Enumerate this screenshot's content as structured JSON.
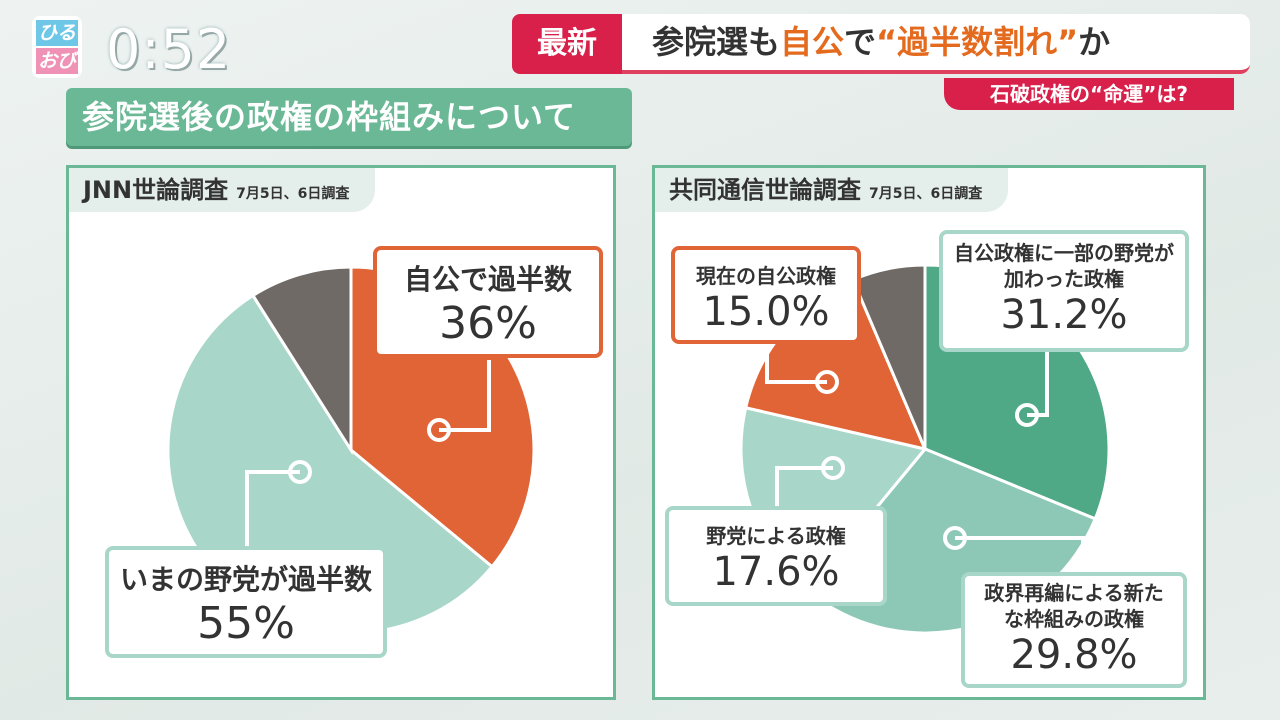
{
  "logo": {
    "line1": "ひる",
    "line2": "おび"
  },
  "clock": "0:52",
  "news": {
    "tag": "最新",
    "headline_pre": "参院選も",
    "headline_hl1": "自公",
    "headline_mid": "で",
    "headline_hl2": "“過半数割れ”",
    "headline_post": "か",
    "sub": "石破政権の“命運”は?"
  },
  "banner": "参院選後の政権の枠組みについて",
  "colors": {
    "orange": "#e06436",
    "light_teal": "#a8d6c8",
    "teal": "#4fa886",
    "mid_teal": "#8dc8b6",
    "gray": "#6f6a66",
    "frame": "#6bb896"
  },
  "chart_data": [
    {
      "type": "pie",
      "title": "JNN世論調査",
      "subtitle": "7月5日、6日調査",
      "slices": [
        {
          "label": "自公で過半数",
          "value": 36,
          "display": "36%",
          "color": "#e06436"
        },
        {
          "label": "いまの野党が過半数",
          "value": 55,
          "display": "55%",
          "color": "#a8d6c8"
        },
        {
          "label": "",
          "value": 9,
          "display": "",
          "color": "#6f6a66"
        }
      ]
    },
    {
      "type": "pie",
      "title": "共同通信世論調査",
      "subtitle": "7月5日、6日調査",
      "slices": [
        {
          "label": "自公政権に一部の野党が加わった政権",
          "value": 31.2,
          "display": "31.2%",
          "color": "#4fa886"
        },
        {
          "label": "政界再編による新たな枠組みの政権",
          "value": 29.8,
          "display": "29.8%",
          "color": "#8dc8b6"
        },
        {
          "label": "野党による政権",
          "value": 17.6,
          "display": "17.6%",
          "color": "#a8d6c8"
        },
        {
          "label": "現在の自公政権",
          "value": 15.0,
          "display": "15.0%",
          "color": "#e06436"
        },
        {
          "label": "",
          "value": 6.4,
          "display": "",
          "color": "#6f6a66"
        }
      ]
    }
  ]
}
